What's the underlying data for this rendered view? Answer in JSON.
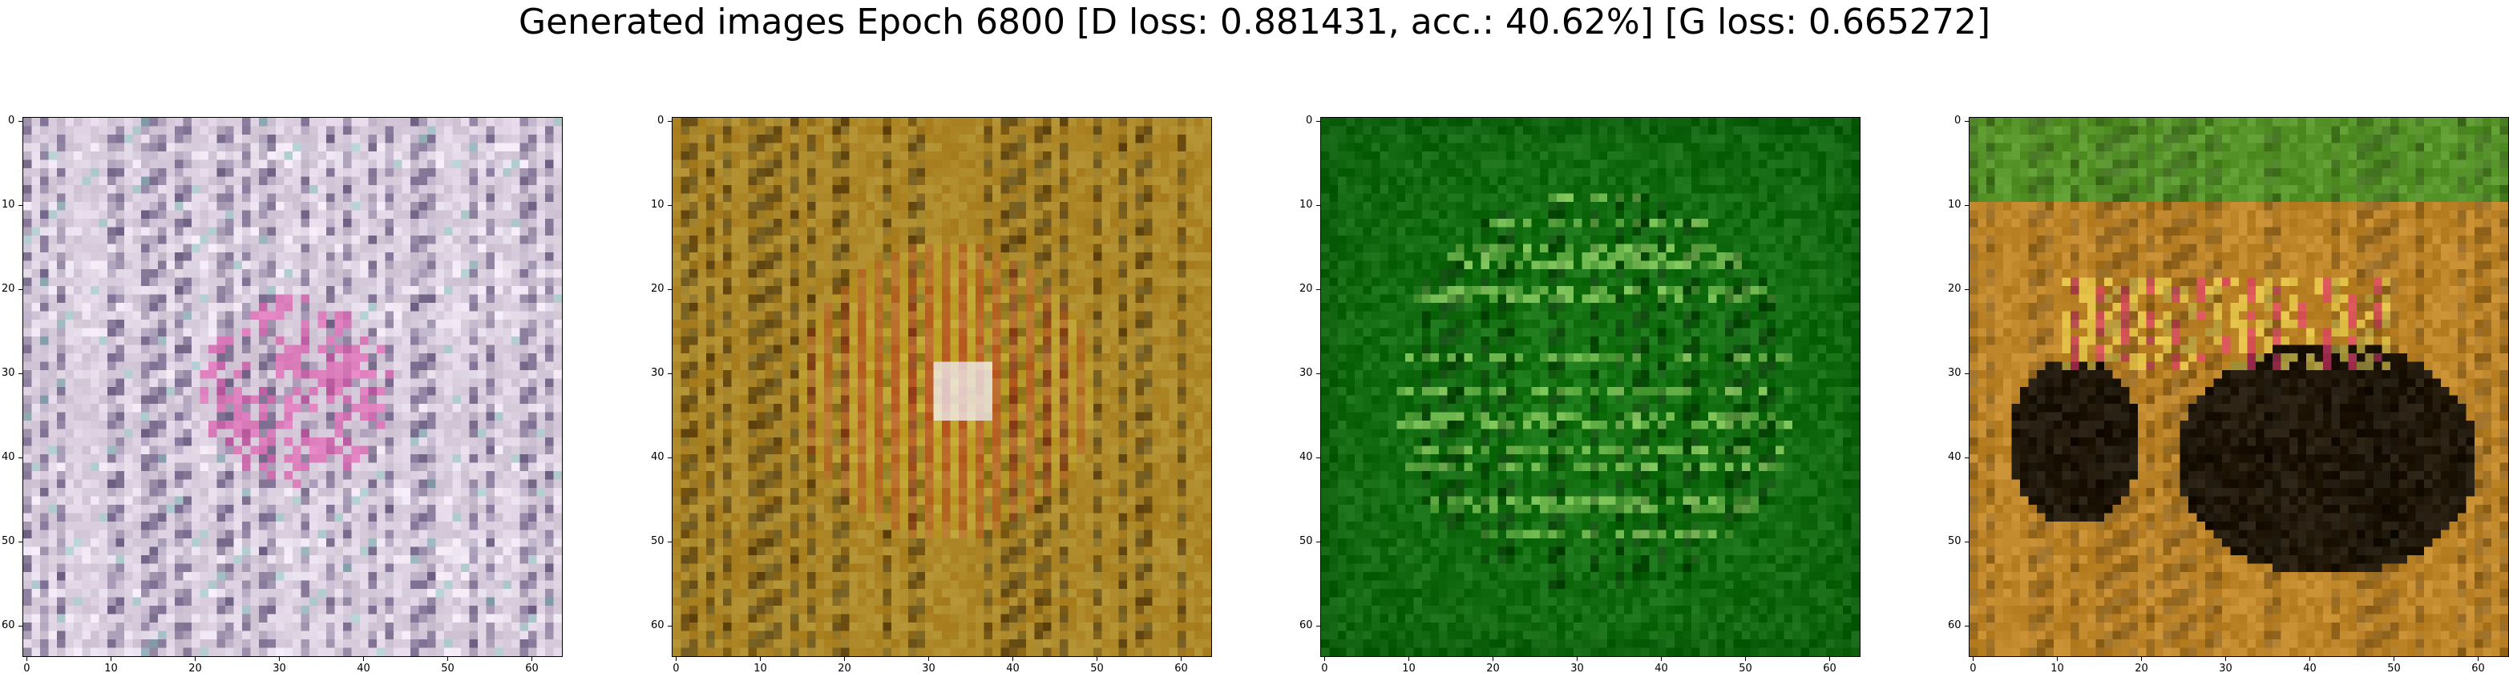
{
  "figure": {
    "title": "Generated images Epoch 6800 [D loss: 0.881431, acc.: 40.62%] [G loss: 0.665272]"
  },
  "panels": [
    {
      "id": "panel-1",
      "description_palette": {
        "base": "#dcd0e0",
        "accent1": "#3a2a5a",
        "accent2": "#d23c9a",
        "accent3": "#6fb0a8"
      },
      "xticks": [
        "0",
        "10",
        "20",
        "30",
        "40",
        "50",
        "60"
      ],
      "yticks": [
        "0",
        "10",
        "20",
        "30",
        "40",
        "50",
        "60"
      ]
    },
    {
      "id": "panel-2",
      "description_palette": {
        "base": "#b58a2a",
        "accent1": "#2a1808",
        "accent2": "#d8202a",
        "accent3": "#f0e03a"
      },
      "xticks": [
        "0",
        "10",
        "20",
        "30",
        "40",
        "50",
        "60"
      ],
      "yticks": [
        "0",
        "10",
        "20",
        "30",
        "40",
        "50",
        "60"
      ]
    },
    {
      "id": "panel-3",
      "description_palette": {
        "base": "#1f8a1a",
        "accent1": "#052005",
        "accent2": "#b8f07a",
        "accent3": "#0c5a0c"
      },
      "xticks": [
        "0",
        "10",
        "20",
        "30",
        "40",
        "50",
        "60"
      ],
      "yticks": [
        "0",
        "10",
        "20",
        "30",
        "40",
        "50",
        "60"
      ]
    },
    {
      "id": "panel-4",
      "description_palette": {
        "base": "#c0862a",
        "accent1": "#050505",
        "accent2": "#e02a6a",
        "accent3": "#2a9a2a"
      },
      "xticks": [
        "0",
        "10",
        "20",
        "30",
        "40",
        "50",
        "60"
      ],
      "yticks": [
        "0",
        "10",
        "20",
        "30",
        "40",
        "50",
        "60"
      ]
    }
  ]
}
